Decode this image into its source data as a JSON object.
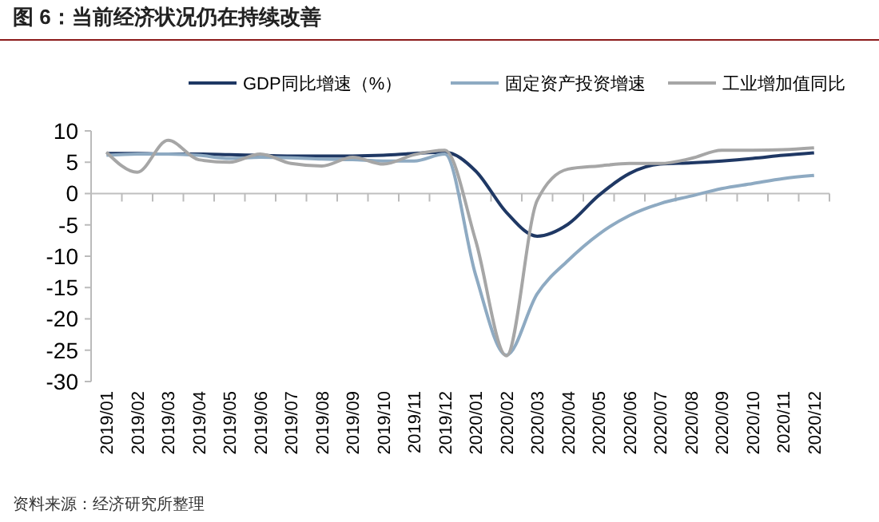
{
  "chart_data": {
    "type": "line",
    "title": "图 6：当前经济状况仍在持续改善",
    "annotations": [
      "资料来源：经济研究所整理"
    ],
    "categories": [
      "2019/01",
      "2019/02",
      "2019/03",
      "2019/04",
      "2019/05",
      "2019/06",
      "2019/07",
      "2019/08",
      "2019/09",
      "2019/10",
      "2019/11",
      "2019/12",
      "2020/01",
      "2020/02",
      "2020/03",
      "2020/04",
      "2020/05",
      "2020/06",
      "2020/07",
      "2020/08",
      "2020/09",
      "2020/10",
      "2020/11",
      "2020/12"
    ],
    "series": [
      {
        "name": "GDP同比增速（%）",
        "color": "#1f3864",
        "values": [
          6.4,
          6.4,
          6.3,
          6.3,
          6.2,
          6.1,
          6.0,
          6.0,
          6.0,
          6.1,
          6.4,
          6.6,
          3.6,
          -3.0,
          -6.8,
          -4.9,
          -0.3,
          3.2,
          4.7,
          4.9,
          5.2,
          5.6,
          6.1,
          6.5
        ]
      },
      {
        "name": "固定资产投资增速",
        "color": "#8eaac2",
        "values": [
          6.1,
          6.3,
          6.3,
          6.1,
          5.6,
          5.8,
          5.7,
          5.5,
          5.4,
          5.2,
          5.2,
          6.3,
          -13.0,
          -25.8,
          -16.0,
          -10.7,
          -6.5,
          -3.5,
          -1.6,
          -0.4,
          0.8,
          1.6,
          2.4,
          2.9
        ]
      },
      {
        "name": "工业增加值同比",
        "color": "#a6a6a6",
        "values": [
          6.6,
          3.4,
          8.5,
          5.4,
          5.0,
          6.3,
          4.8,
          4.4,
          5.8,
          4.7,
          6.2,
          6.9,
          -7.5,
          -25.9,
          -1.1,
          3.9,
          4.4,
          4.8,
          4.8,
          5.6,
          6.9,
          6.9,
          7.0,
          7.3
        ]
      }
    ],
    "ylim": [
      -30,
      10
    ],
    "yticks": [
      -30,
      -25,
      -20,
      -15,
      -10,
      -5,
      0,
      5,
      10
    ],
    "legend": "top",
    "grid": false,
    "ref_lines": [
      {
        "axis": "y",
        "value": 0,
        "color": "#bfbfbf"
      }
    ],
    "marker": "none",
    "line_style": "solid"
  }
}
